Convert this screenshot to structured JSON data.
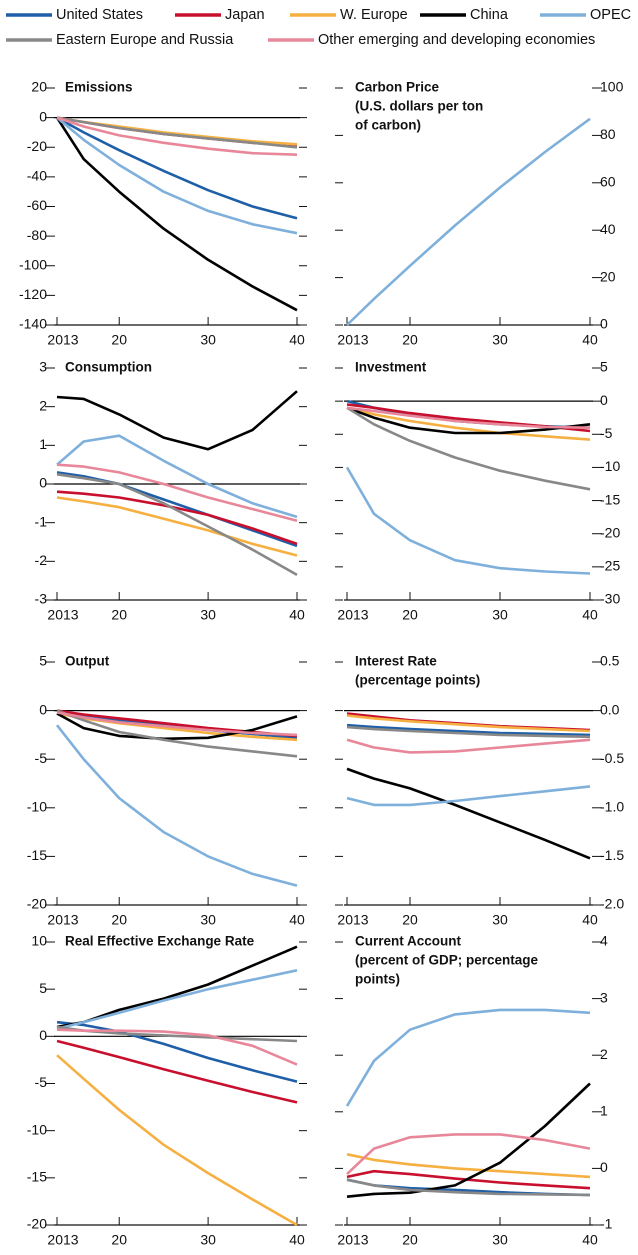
{
  "legend": {
    "series": [
      {
        "name": "United States",
        "color": "#1f5fa8"
      },
      {
        "name": "Japan",
        "color": "#c8102e"
      },
      {
        "name": "W. Europe",
        "color": "#f5b041"
      },
      {
        "name": "China",
        "color": "#000000"
      },
      {
        "name": "OPEC",
        "color": "#7fb0dc"
      },
      {
        "name": "Eastern Europe and Russia",
        "color": "#888888"
      },
      {
        "name": "Other emerging and developing economies",
        "color": "#e8879a"
      }
    ]
  },
  "chart_data": [
    {
      "type": "line",
      "title": [
        "Emissions"
      ],
      "y_axis": "left",
      "zero_line": true,
      "x": [
        2013,
        2016,
        2020,
        2025,
        2030,
        2035,
        2040
      ],
      "xlim": [
        2013,
        2040
      ],
      "xticks": [
        2013,
        {
          "value": 2020,
          "label": "20"
        },
        {
          "value": 2030,
          "label": "30"
        },
        {
          "value": 2040,
          "label": "40"
        }
      ],
      "ylim": [
        -140,
        20
      ],
      "yticks": [
        20,
        0,
        -20,
        -40,
        -60,
        -80,
        -100,
        -120,
        -140
      ],
      "series": [
        {
          "values": [
            0,
            -10,
            -22,
            -36,
            -49,
            -60,
            -68
          ]
        },
        {
          "values": [
            0,
            -3,
            -7,
            -11,
            -14,
            -17,
            -19
          ]
        },
        {
          "values": [
            0,
            -3,
            -6,
            -10,
            -13,
            -16,
            -18
          ]
        },
        {
          "values": [
            0,
            -28,
            -50,
            -75,
            -96,
            -114,
            -130
          ]
        },
        {
          "values": [
            0,
            -15,
            -32,
            -50,
            -63,
            -72,
            -78
          ]
        },
        {
          "values": [
            0,
            -3,
            -7,
            -11,
            -14,
            -17,
            -20
          ]
        },
        {
          "values": [
            0,
            -6,
            -12,
            -17,
            -21,
            -24,
            -25
          ]
        }
      ]
    },
    {
      "type": "line",
      "title": [
        "Carbon Price",
        "(U.S. dollars per ton",
        "of carbon)"
      ],
      "y_axis": "right",
      "zero_line": false,
      "x": [
        2013,
        2016,
        2020,
        2025,
        2030,
        2035,
        2040
      ],
      "xlim": [
        2013,
        2040
      ],
      "xticks": [
        2013,
        {
          "value": 2020,
          "label": "20"
        },
        {
          "value": 2030,
          "label": "30"
        },
        {
          "value": 2040,
          "label": "40"
        }
      ],
      "ylim": [
        0,
        100
      ],
      "yticks": [
        100,
        80,
        60,
        40,
        20,
        0
      ],
      "series": [
        {
          "color": "#7fb0dc",
          "values": [
            0,
            11,
            25,
            42,
            58,
            73,
            87
          ]
        }
      ]
    },
    {
      "type": "line",
      "title": [
        "Consumption"
      ],
      "y_axis": "left",
      "zero_line": true,
      "x": [
        2013,
        2016,
        2020,
        2025,
        2030,
        2035,
        2040
      ],
      "xlim": [
        2013,
        2040
      ],
      "xticks": [
        2013,
        {
          "value": 2020,
          "label": "20"
        },
        {
          "value": 2030,
          "label": "30"
        },
        {
          "value": 2040,
          "label": "40"
        }
      ],
      "ylim": [
        -3,
        3
      ],
      "yticks": [
        3,
        2,
        1,
        0,
        -1,
        -2,
        -3
      ],
      "series": [
        {
          "values": [
            0.3,
            0.2,
            0,
            -0.4,
            -0.8,
            -1.2,
            -1.6
          ]
        },
        {
          "values": [
            -0.2,
            -0.25,
            -0.35,
            -0.55,
            -0.8,
            -1.15,
            -1.55
          ]
        },
        {
          "values": [
            -0.35,
            -0.45,
            -0.6,
            -0.9,
            -1.2,
            -1.55,
            -1.85
          ]
        },
        {
          "values": [
            2.25,
            2.2,
            1.8,
            1.2,
            0.9,
            1.4,
            2.4
          ]
        },
        {
          "values": [
            0.5,
            1.1,
            1.25,
            0.6,
            0,
            -0.5,
            -0.85
          ]
        },
        {
          "values": [
            0.25,
            0.15,
            0,
            -0.5,
            -1.1,
            -1.7,
            -2.35
          ]
        },
        {
          "values": [
            0.5,
            0.45,
            0.3,
            0,
            -0.35,
            -0.65,
            -0.95
          ]
        }
      ]
    },
    {
      "type": "line",
      "title": [
        "Investment"
      ],
      "y_axis": "right",
      "zero_line": true,
      "x": [
        2013,
        2016,
        2020,
        2025,
        2030,
        2035,
        2040
      ],
      "xlim": [
        2013,
        2040
      ],
      "xticks": [
        2013,
        {
          "value": 2020,
          "label": "20"
        },
        {
          "value": 2030,
          "label": "30"
        },
        {
          "value": 2040,
          "label": "40"
        }
      ],
      "ylim": [
        -30,
        5
      ],
      "yticks": [
        5,
        0,
        -5,
        -10,
        -15,
        -20,
        -25,
        -30
      ],
      "series": [
        {
          "values": [
            0,
            -1,
            -2,
            -3,
            -3.5,
            -3.8,
            -4
          ]
        },
        {
          "values": [
            -0.5,
            -1,
            -1.8,
            -2.6,
            -3.2,
            -3.8,
            -4.5
          ]
        },
        {
          "values": [
            -1,
            -2,
            -3,
            -4,
            -4.8,
            -5.3,
            -5.8
          ]
        },
        {
          "values": [
            -1,
            -2.5,
            -4,
            -4.8,
            -4.8,
            -4.3,
            -3.5
          ]
        },
        {
          "values": [
            -10,
            -17,
            -21,
            -24,
            -25.2,
            -25.7,
            -26
          ]
        },
        {
          "values": [
            -1,
            -3.5,
            -6,
            -8.5,
            -10.5,
            -12,
            -13.3
          ]
        },
        {
          "values": [
            -1,
            -1.5,
            -2.2,
            -3,
            -3.5,
            -3.9,
            -4
          ]
        }
      ]
    },
    {
      "type": "line",
      "title": [
        "Output"
      ],
      "y_axis": "left",
      "zero_line": true,
      "x": [
        2013,
        2016,
        2020,
        2025,
        2030,
        2035,
        2040
      ],
      "xlim": [
        2013,
        2040
      ],
      "xticks": [
        2013,
        {
          "value": 2020,
          "label": "20"
        },
        {
          "value": 2030,
          "label": "30"
        },
        {
          "value": 2040,
          "label": "40"
        }
      ],
      "ylim": [
        -20,
        5
      ],
      "yticks": [
        5,
        0,
        -5,
        -10,
        -15,
        -20
      ],
      "series": [
        {
          "values": [
            0,
            -0.5,
            -1,
            -1.5,
            -2,
            -2.4,
            -2.8
          ]
        },
        {
          "values": [
            0,
            -0.4,
            -0.8,
            -1.3,
            -1.8,
            -2.2,
            -2.6
          ]
        },
        {
          "values": [
            -0.3,
            -0.8,
            -1.3,
            -1.8,
            -2.3,
            -2.7,
            -3
          ]
        },
        {
          "values": [
            -0.3,
            -1.8,
            -2.6,
            -2.9,
            -2.8,
            -2,
            -0.6
          ]
        },
        {
          "values": [
            -1.5,
            -5,
            -9,
            -12.5,
            -15,
            -16.8,
            -18
          ]
        },
        {
          "values": [
            0,
            -1,
            -2.2,
            -3,
            -3.7,
            -4.2,
            -4.7
          ]
        },
        {
          "values": [
            -0.2,
            -0.7,
            -1.2,
            -1.6,
            -2,
            -2.3,
            -2.5
          ]
        }
      ]
    },
    {
      "type": "line",
      "title": [
        "Interest Rate",
        "(percentage points)"
      ],
      "y_axis": "right",
      "zero_line": true,
      "x": [
        2013,
        2016,
        2020,
        2025,
        2030,
        2035,
        2040
      ],
      "xlim": [
        2013,
        2040
      ],
      "xticks": [
        2013,
        {
          "value": 2020,
          "label": "20"
        },
        {
          "value": 2030,
          "label": "30"
        },
        {
          "value": 2040,
          "label": "40"
        }
      ],
      "ylim": [
        -2,
        0.5
      ],
      "yticks": [
        0.5,
        {
          "value": 0,
          "label": "0.0"
        },
        -0.5,
        {
          "value": -1,
          "label": "-1.0"
        },
        -1.5,
        {
          "value": -2,
          "label": "-2.0"
        }
      ],
      "series": [
        {
          "values": [
            -0.15,
            -0.17,
            -0.19,
            -0.21,
            -0.23,
            -0.24,
            -0.25
          ]
        },
        {
          "values": [
            -0.03,
            -0.06,
            -0.1,
            -0.13,
            -0.16,
            -0.18,
            -0.2
          ]
        },
        {
          "values": [
            -0.05,
            -0.08,
            -0.11,
            -0.14,
            -0.17,
            -0.19,
            -0.21
          ]
        },
        {
          "values": [
            -0.6,
            -0.7,
            -0.8,
            -0.97,
            -1.15,
            -1.33,
            -1.52
          ]
        },
        {
          "values": [
            -0.9,
            -0.97,
            -0.97,
            -0.93,
            -0.88,
            -0.83,
            -0.78
          ]
        },
        {
          "values": [
            -0.17,
            -0.19,
            -0.21,
            -0.23,
            -0.25,
            -0.26,
            -0.27
          ]
        },
        {
          "values": [
            -0.3,
            -0.38,
            -0.43,
            -0.42,
            -0.38,
            -0.34,
            -0.3
          ]
        }
      ]
    },
    {
      "type": "line",
      "title": [
        "Real Effective Exchange Rate"
      ],
      "y_axis": "left",
      "zero_line": true,
      "x": [
        2013,
        2016,
        2020,
        2025,
        2030,
        2035,
        2040
      ],
      "xlim": [
        2013,
        2040
      ],
      "xticks": [
        2013,
        {
          "value": 2020,
          "label": "20"
        },
        {
          "value": 2030,
          "label": "30"
        },
        {
          "value": 2040,
          "label": "40"
        }
      ],
      "ylim": [
        -20,
        10
      ],
      "yticks": [
        10,
        5,
        0,
        -5,
        -10,
        -15,
        -20
      ],
      "series": [
        {
          "values": [
            1.5,
            1.2,
            0.5,
            -0.8,
            -2.3,
            -3.6,
            -4.8
          ]
        },
        {
          "values": [
            -0.5,
            -1.2,
            -2.2,
            -3.5,
            -4.7,
            -5.9,
            -7
          ]
        },
        {
          "values": [
            -2,
            -4.5,
            -7.8,
            -11.5,
            -14.5,
            -17.3,
            -20
          ]
        },
        {
          "values": [
            1,
            1.5,
            2.8,
            4,
            5.5,
            7.5,
            9.5
          ]
        },
        {
          "values": [
            0.8,
            1.5,
            2.5,
            3.8,
            5,
            6,
            7
          ]
        },
        {
          "values": [
            1,
            0.6,
            0.3,
            0.1,
            -0.1,
            -0.3,
            -0.5
          ]
        },
        {
          "values": [
            0.7,
            0.6,
            0.6,
            0.5,
            0.1,
            -1,
            -3
          ]
        }
      ]
    },
    {
      "type": "line",
      "title": [
        "Current Account",
        "(percent of GDP; percentage",
        "points)"
      ],
      "y_axis": "right",
      "zero_line": false,
      "x": [
        2013,
        2016,
        2020,
        2025,
        2030,
        2035,
        2040
      ],
      "xlim": [
        2013,
        2040
      ],
      "xticks": [
        2013,
        {
          "value": 2020,
          "label": "20"
        },
        {
          "value": 2030,
          "label": "30"
        },
        {
          "value": 2040,
          "label": "40"
        }
      ],
      "ylim": [
        -1,
        4
      ],
      "yticks": [
        4,
        3,
        2,
        1,
        0,
        -1
      ],
      "series": [
        {
          "values": [
            -0.2,
            -0.3,
            -0.35,
            -0.38,
            -0.42,
            -0.45,
            -0.47
          ]
        },
        {
          "values": [
            -0.15,
            -0.05,
            -0.1,
            -0.18,
            -0.25,
            -0.3,
            -0.35
          ]
        },
        {
          "values": [
            0.25,
            0.15,
            0.07,
            0,
            -0.05,
            -0.1,
            -0.15
          ]
        },
        {
          "values": [
            -0.5,
            -0.45,
            -0.43,
            -0.3,
            0.1,
            0.75,
            1.5
          ]
        },
        {
          "values": [
            1.1,
            1.9,
            2.45,
            2.72,
            2.8,
            2.8,
            2.75
          ]
        },
        {
          "values": [
            -0.2,
            -0.3,
            -0.38,
            -0.42,
            -0.45,
            -0.46,
            -0.47
          ]
        },
        {
          "values": [
            -0.1,
            0.35,
            0.55,
            0.6,
            0.6,
            0.5,
            0.35
          ]
        }
      ]
    }
  ]
}
